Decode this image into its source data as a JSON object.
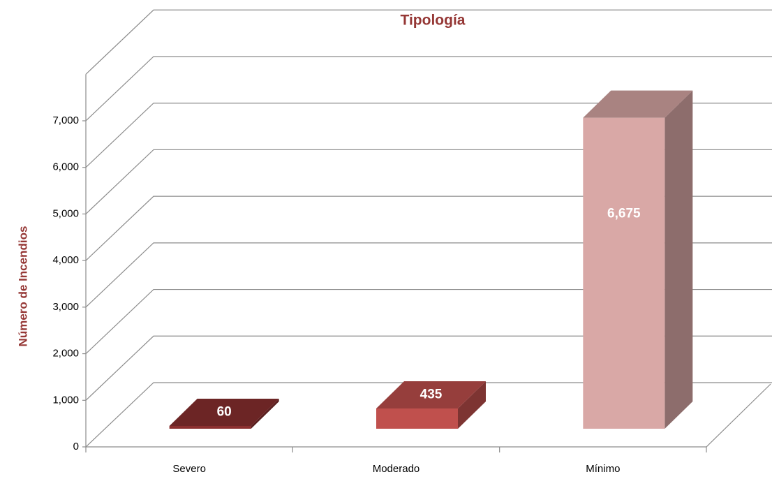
{
  "chart_data": {
    "type": "bar3d",
    "title": "Tipología",
    "y_label": "Número de Incendios",
    "categories": [
      "Severo",
      "Moderado",
      "Mínimo"
    ],
    "values": [
      60,
      435,
      6675
    ],
    "value_labels": [
      "60",
      "435",
      "6,675"
    ],
    "colors": [
      "#8b2f2f",
      "#c0504d",
      "#d9a8a6"
    ],
    "ylim": [
      0,
      8000
    ],
    "yticks": [
      0,
      {
        "value": 1000,
        "label": "1,000"
      },
      {
        "value": 2000,
        "label": "2,000"
      },
      {
        "value": 3000,
        "label": "3,000"
      },
      {
        "value": 4000,
        "label": "4,000"
      },
      {
        "value": 5000,
        "label": "5,000"
      },
      {
        "value": 6000,
        "label": "6,000"
      },
      {
        "value": 7000,
        "label": "7,000"
      }
    ],
    "grid": true
  }
}
